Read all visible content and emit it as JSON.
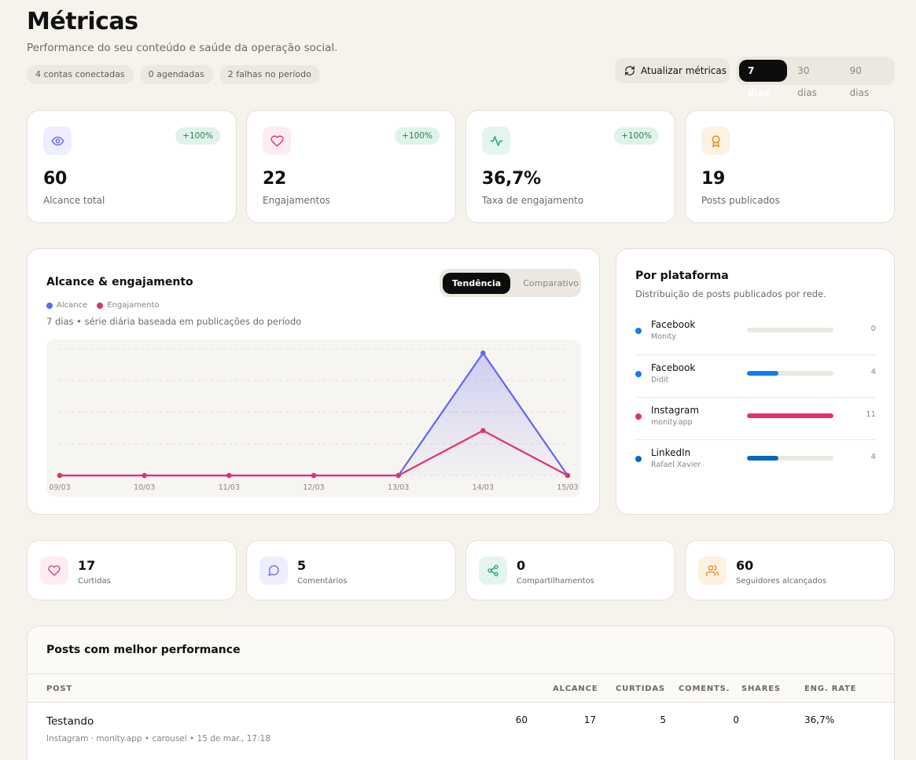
{
  "header": {
    "title": "Métricas",
    "subtitle": "Performance do seu conteúdo e saúde da operação social.",
    "chips": [
      "4 contas conectadas",
      "0 agendadas",
      "2 falhas no período"
    ],
    "refresh_label": "Atualizar métricas",
    "periods": [
      "7 dias",
      "30 dias",
      "90 dias"
    ],
    "active_period": "7 dias"
  },
  "kpis": [
    {
      "value": "60",
      "label": "Alcance total",
      "badge": "+100%",
      "icon": "eye-icon",
      "color": "#6366f1"
    },
    {
      "value": "22",
      "label": "Engajamentos",
      "badge": "+100%",
      "icon": "heart-icon",
      "color": "#e0336e"
    },
    {
      "value": "36,7%",
      "label": "Taxa de engajamento",
      "badge": "+100%",
      "icon": "activity-icon",
      "color": "#16a37a"
    },
    {
      "value": "19",
      "label": "Posts publicados",
      "badge": "",
      "icon": "award-icon",
      "color": "#e08a1e"
    }
  ],
  "chart_data": {
    "type": "line",
    "title": "Alcance & engajamento",
    "toggle": [
      "Tendência",
      "Comparativo"
    ],
    "active_toggle": "Tendência",
    "caption": "7 dias • série diária baseada em publicações do período",
    "categories": [
      "09/03",
      "10/03",
      "11/03",
      "12/03",
      "13/03",
      "14/03",
      "15/03"
    ],
    "series": [
      {
        "name": "Alcance",
        "color": "#6366f1",
        "values": [
          0,
          0,
          0,
          0,
          0,
          60,
          0
        ]
      },
      {
        "name": "Engajamento",
        "color": "#e0336e",
        "values": [
          0,
          0,
          0,
          0,
          0,
          22,
          0
        ]
      }
    ],
    "ylim": [
      0,
      62
    ],
    "grid": true
  },
  "platforms": {
    "title": "Por plataforma",
    "subtitle": "Distribuição de posts publicados por rede.",
    "max": 11,
    "items": [
      {
        "name": "Facebook",
        "account": "Monity",
        "count": 0,
        "color": "#1877f2"
      },
      {
        "name": "Facebook",
        "account": "Didit",
        "count": 4,
        "color": "#1877f2"
      },
      {
        "name": "Instagram",
        "account": "monity.app",
        "count": 11,
        "color": "#e0336e"
      },
      {
        "name": "LinkedIn",
        "account": "Rafael Xavier",
        "count": 4,
        "color": "#0a66c2"
      }
    ]
  },
  "stats": [
    {
      "value": "17",
      "label": "Curtidas",
      "icon": "heart-icon",
      "color": "#e0336e",
      "bg": "#fdecf1"
    },
    {
      "value": "5",
      "label": "Comentários",
      "icon": "comment-icon",
      "color": "#6366f1",
      "bg": "#eeeefe"
    },
    {
      "value": "0",
      "label": "Compartilhamentos",
      "icon": "share-icon",
      "color": "#16a37a",
      "bg": "#e4f5ee"
    },
    {
      "value": "60",
      "label": "Seguidores alcançados",
      "icon": "users-icon",
      "color": "#e08a1e",
      "bg": "#fdf1e2"
    }
  ],
  "top_posts": {
    "title": "Posts com melhor performance",
    "columns": [
      "POST",
      "ALCANCE",
      "CURTIDAS",
      "COMENTS.",
      "SHARES",
      "ENG. RATE"
    ],
    "rows": [
      {
        "title": "Testando",
        "meta": "Instagram · monity.app • carousel • 15 de mar., 17:18",
        "reach": "60",
        "likes": "17",
        "comments": "5",
        "shares": "0",
        "eng_rate": "36,7%"
      }
    ]
  }
}
